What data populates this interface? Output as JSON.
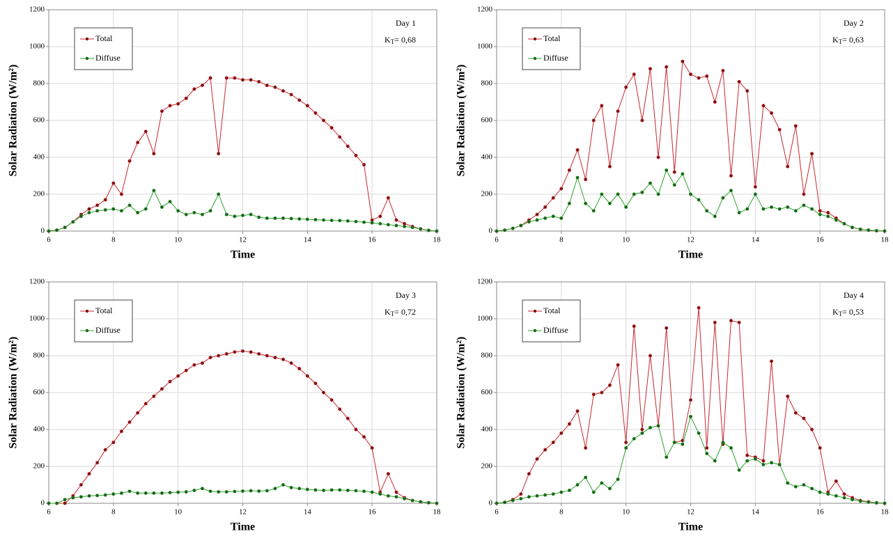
{
  "chart_data": [
    {
      "type": "line",
      "annotation": "Day 1",
      "kt": {
        "symbol": "K",
        "subscript": "T",
        "text": "= 0,68"
      },
      "xlabel": "Time",
      "ylabel": "Solar Radiation (W/m²)",
      "xlim": [
        6,
        18
      ],
      "xticks": [
        6,
        8,
        10,
        12,
        14,
        16,
        18
      ],
      "ylim": [
        0,
        1200
      ],
      "yticks": [
        0,
        200,
        400,
        600,
        800,
        1000,
        1200
      ],
      "grid": true,
      "legend": "upper left",
      "x": [
        6,
        6.25,
        6.5,
        6.75,
        7,
        7.25,
        7.5,
        7.75,
        8,
        8.25,
        8.5,
        8.75,
        9,
        9.25,
        9.5,
        9.75,
        10,
        10.25,
        10.5,
        10.75,
        11,
        11.25,
        11.5,
        11.75,
        12,
        12.25,
        12.5,
        12.75,
        13,
        13.25,
        13.5,
        13.75,
        14,
        14.25,
        14.5,
        14.75,
        15,
        15.25,
        15.5,
        15.75,
        16,
        16.25,
        16.5,
        16.75,
        17,
        17.25,
        17.5,
        17.75,
        18
      ],
      "series": [
        {
          "name": "Total",
          "color": "#c8262c",
          "values": [
            0,
            5,
            20,
            50,
            90,
            120,
            140,
            170,
            260,
            200,
            380,
            480,
            540,
            420,
            650,
            680,
            690,
            720,
            770,
            790,
            830,
            420,
            830,
            830,
            820,
            820,
            810,
            790,
            780,
            760,
            740,
            710,
            680,
            640,
            600,
            560,
            510,
            460,
            410,
            360,
            60,
            80,
            180,
            60,
            40,
            25,
            12,
            4,
            0
          ]
        },
        {
          "name": "Diffuse",
          "color": "#2ca02c",
          "values": [
            0,
            5,
            20,
            50,
            80,
            100,
            110,
            115,
            120,
            110,
            140,
            100,
            120,
            220,
            130,
            160,
            110,
            90,
            100,
            90,
            110,
            200,
            90,
            80,
            85,
            90,
            75,
            70,
            70,
            70,
            68,
            66,
            64,
            62,
            60,
            58,
            57,
            55,
            52,
            48,
            45,
            40,
            35,
            30,
            25,
            20,
            12,
            4,
            0
          ]
        }
      ]
    },
    {
      "type": "line",
      "annotation": "Day 2",
      "kt": {
        "symbol": "K",
        "subscript": "T",
        "text": "= 0,63"
      },
      "xlabel": "Time",
      "ylabel": "Solar Radiation (W/m²)",
      "xlim": [
        6,
        18
      ],
      "xticks": [
        6,
        8,
        10,
        12,
        14,
        16,
        18
      ],
      "ylim": [
        0,
        1200
      ],
      "yticks": [
        0,
        200,
        400,
        600,
        800,
        1000,
        1200
      ],
      "grid": true,
      "legend": "upper left",
      "x": [
        6,
        6.25,
        6.5,
        6.75,
        7,
        7.25,
        7.5,
        7.75,
        8,
        8.25,
        8.5,
        8.75,
        9,
        9.25,
        9.5,
        9.75,
        10,
        10.25,
        10.5,
        10.75,
        11,
        11.25,
        11.5,
        11.75,
        12,
        12.25,
        12.5,
        12.75,
        13,
        13.25,
        13.5,
        13.75,
        14,
        14.25,
        14.5,
        14.75,
        15,
        15.25,
        15.5,
        15.75,
        16,
        16.25,
        16.5,
        16.75,
        17,
        17.25,
        17.5,
        17.75,
        18
      ],
      "series": [
        {
          "name": "Total",
          "color": "#c8262c",
          "values": [
            0,
            5,
            15,
            30,
            60,
            90,
            130,
            180,
            230,
            330,
            440,
            280,
            600,
            680,
            350,
            650,
            780,
            850,
            600,
            880,
            400,
            890,
            320,
            920,
            850,
            830,
            840,
            700,
            870,
            300,
            810,
            760,
            240,
            680,
            640,
            550,
            350,
            570,
            200,
            420,
            110,
            100,
            70,
            40,
            20,
            10,
            5,
            2,
            0
          ]
        },
        {
          "name": "Diffuse",
          "color": "#2ca02c",
          "values": [
            0,
            5,
            15,
            30,
            50,
            60,
            70,
            80,
            70,
            150,
            290,
            150,
            110,
            200,
            150,
            200,
            130,
            200,
            210,
            260,
            200,
            330,
            250,
            310,
            200,
            170,
            110,
            80,
            180,
            220,
            100,
            120,
            200,
            120,
            130,
            120,
            130,
            110,
            140,
            120,
            90,
            80,
            60,
            40,
            20,
            10,
            5,
            2,
            0
          ]
        }
      ]
    },
    {
      "type": "line",
      "annotation": "Day 3",
      "kt": {
        "symbol": "K",
        "subscript": "T",
        "text": "= 0,72"
      },
      "xlabel": "Time",
      "ylabel": "Solar Radiation (W/m²)",
      "xlim": [
        6,
        18
      ],
      "xticks": [
        6,
        8,
        10,
        12,
        14,
        16,
        18
      ],
      "ylim": [
        0,
        1200
      ],
      "yticks": [
        0,
        200,
        400,
        600,
        800,
        1000,
        1200
      ],
      "grid": true,
      "legend": "upper left",
      "x": [
        6,
        6.25,
        6.5,
        6.75,
        7,
        7.25,
        7.5,
        7.75,
        8,
        8.25,
        8.5,
        8.75,
        9,
        9.25,
        9.5,
        9.75,
        10,
        10.25,
        10.5,
        10.75,
        11,
        11.25,
        11.5,
        11.75,
        12,
        12.25,
        12.5,
        12.75,
        13,
        13.25,
        13.5,
        13.75,
        14,
        14.25,
        14.5,
        14.75,
        15,
        15.25,
        15.5,
        15.75,
        16,
        16.25,
        16.5,
        16.75,
        17,
        17.25,
        17.5,
        17.75,
        18
      ],
      "series": [
        {
          "name": "Total",
          "color": "#c8262c",
          "values": [
            0,
            0,
            0,
            40,
            100,
            160,
            220,
            290,
            330,
            390,
            440,
            490,
            540,
            580,
            620,
            660,
            690,
            720,
            750,
            760,
            790,
            800,
            810,
            820,
            825,
            820,
            810,
            800,
            790,
            780,
            760,
            730,
            690,
            650,
            600,
            560,
            510,
            460,
            400,
            360,
            300,
            60,
            160,
            60,
            30,
            15,
            8,
            3,
            0
          ]
        },
        {
          "name": "Diffuse",
          "color": "#2ca02c",
          "values": [
            0,
            0,
            20,
            30,
            35,
            40,
            42,
            45,
            50,
            55,
            65,
            55,
            55,
            55,
            55,
            58,
            60,
            62,
            70,
            80,
            65,
            62,
            62,
            64,
            66,
            68,
            66,
            68,
            80,
            100,
            85,
            80,
            75,
            72,
            70,
            72,
            72,
            70,
            68,
            65,
            60,
            50,
            40,
            35,
            25,
            15,
            8,
            3,
            0
          ]
        }
      ]
    },
    {
      "type": "line",
      "annotation": "Day 4",
      "kt": {
        "symbol": "K",
        "subscript": "T",
        "text": "= 0,53"
      },
      "xlabel": "Time",
      "ylabel": "Solar Radiation (W/m²)",
      "xlim": [
        6,
        18
      ],
      "xticks": [
        6,
        8,
        10,
        12,
        14,
        16,
        18
      ],
      "ylim": [
        0,
        1200
      ],
      "yticks": [
        0,
        200,
        400,
        600,
        800,
        1000,
        1200
      ],
      "grid": true,
      "legend": "upper left",
      "x": [
        6,
        6.25,
        6.5,
        6.75,
        7,
        7.25,
        7.5,
        7.75,
        8,
        8.25,
        8.5,
        8.75,
        9,
        9.25,
        9.5,
        9.75,
        10,
        10.25,
        10.5,
        10.75,
        11,
        11.25,
        11.5,
        11.75,
        12,
        12.25,
        12.5,
        12.75,
        13,
        13.25,
        13.5,
        13.75,
        14,
        14.25,
        14.5,
        14.75,
        15,
        15.25,
        15.5,
        15.75,
        16,
        16.25,
        16.5,
        16.75,
        17,
        17.25,
        17.5,
        17.75,
        18
      ],
      "series": [
        {
          "name": "Total",
          "color": "#c8262c",
          "values": [
            0,
            5,
            20,
            50,
            160,
            240,
            290,
            330,
            380,
            430,
            500,
            300,
            590,
            600,
            640,
            750,
            330,
            960,
            400,
            800,
            420,
            950,
            330,
            340,
            560,
            1060,
            300,
            980,
            320,
            990,
            980,
            260,
            250,
            230,
            770,
            210,
            580,
            490,
            460,
            400,
            300,
            60,
            120,
            50,
            30,
            15,
            8,
            3,
            0
          ]
        },
        {
          "name": "Diffuse",
          "color": "#2ca02c",
          "values": [
            0,
            5,
            15,
            25,
            35,
            40,
            45,
            50,
            60,
            70,
            100,
            140,
            60,
            110,
            80,
            130,
            300,
            350,
            380,
            410,
            420,
            250,
            330,
            320,
            470,
            380,
            270,
            230,
            330,
            300,
            180,
            230,
            240,
            210,
            220,
            210,
            110,
            90,
            100,
            80,
            60,
            50,
            40,
            30,
            20,
            12,
            6,
            2,
            0
          ]
        }
      ]
    }
  ]
}
